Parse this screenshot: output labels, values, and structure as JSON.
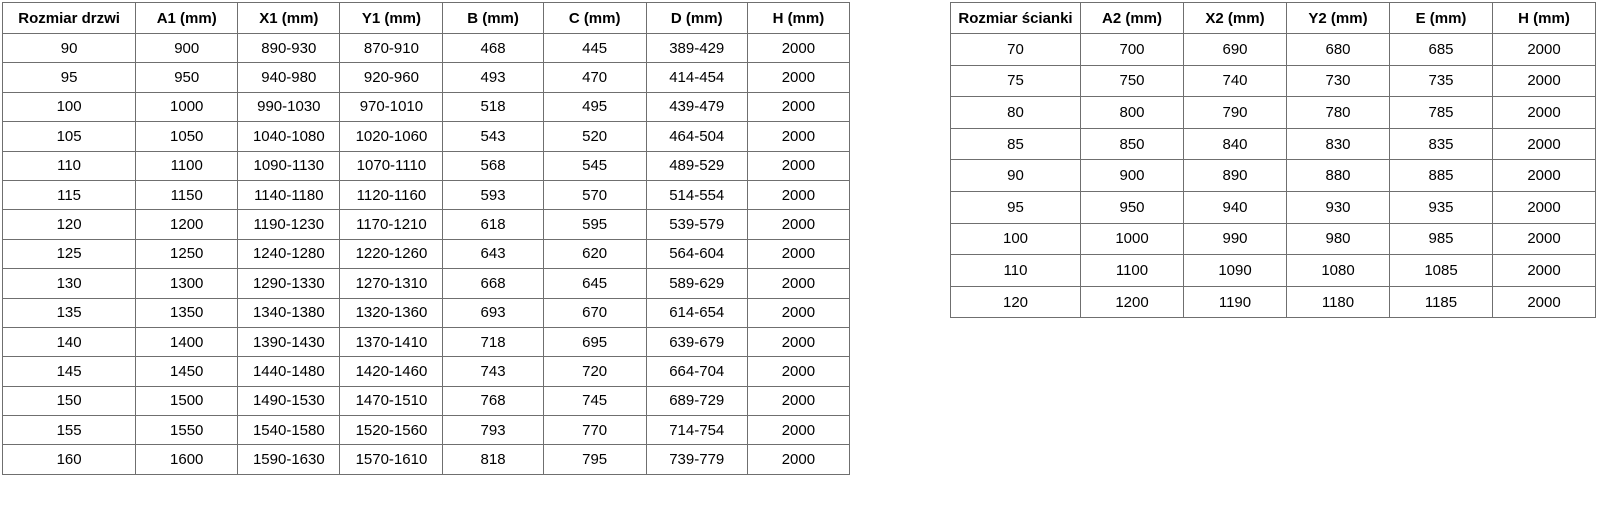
{
  "page": {
    "background_color": "#ffffff",
    "text_color": "#000000",
    "grid_border_color": "#6f6f6f",
    "outer_border_color": "#585858"
  },
  "tables": [
    {
      "id": "door-sizes",
      "headers": [
        "Rozmiar drzwi",
        "A1 (mm)",
        "X1 (mm)",
        "Y1 (mm)",
        "B (mm)",
        "C (mm)",
        "D (mm)",
        "H (mm)"
      ],
      "rows": [
        [
          "90",
          "900",
          "890-930",
          "870-910",
          "468",
          "445",
          "389-429",
          "2000"
        ],
        [
          "95",
          "950",
          "940-980",
          "920-960",
          "493",
          "470",
          "414-454",
          "2000"
        ],
        [
          "100",
          "1000",
          "990-1030",
          "970-1010",
          "518",
          "495",
          "439-479",
          "2000"
        ],
        [
          "105",
          "1050",
          "1040-1080",
          "1020-1060",
          "543",
          "520",
          "464-504",
          "2000"
        ],
        [
          "110",
          "1100",
          "1090-1130",
          "1070-1110",
          "568",
          "545",
          "489-529",
          "2000"
        ],
        [
          "115",
          "1150",
          "1140-1180",
          "1120-1160",
          "593",
          "570",
          "514-554",
          "2000"
        ],
        [
          "120",
          "1200",
          "1190-1230",
          "1170-1210",
          "618",
          "595",
          "539-579",
          "2000"
        ],
        [
          "125",
          "1250",
          "1240-1280",
          "1220-1260",
          "643",
          "620",
          "564-604",
          "2000"
        ],
        [
          "130",
          "1300",
          "1290-1330",
          "1270-1310",
          "668",
          "645",
          "589-629",
          "2000"
        ],
        [
          "135",
          "1350",
          "1340-1380",
          "1320-1360",
          "693",
          "670",
          "614-654",
          "2000"
        ],
        [
          "140",
          "1400",
          "1390-1430",
          "1370-1410",
          "718",
          "695",
          "639-679",
          "2000"
        ],
        [
          "145",
          "1450",
          "1440-1480",
          "1420-1460",
          "743",
          "720",
          "664-704",
          "2000"
        ],
        [
          "150",
          "1500",
          "1490-1530",
          "1470-1510",
          "768",
          "745",
          "689-729",
          "2000"
        ],
        [
          "155",
          "1550",
          "1540-1580",
          "1520-1560",
          "793",
          "770",
          "714-754",
          "2000"
        ],
        [
          "160",
          "1600",
          "1590-1630",
          "1570-1610",
          "818",
          "795",
          "739-779",
          "2000"
        ]
      ]
    },
    {
      "id": "wall-sizes",
      "headers": [
        "Rozmiar ścianki",
        "A2 (mm)",
        "X2 (mm)",
        "Y2 (mm)",
        "E (mm)",
        "H (mm)"
      ],
      "rows": [
        [
          "70",
          "700",
          "690",
          "680",
          "685",
          "2000"
        ],
        [
          "75",
          "750",
          "740",
          "730",
          "735",
          "2000"
        ],
        [
          "80",
          "800",
          "790",
          "780",
          "785",
          "2000"
        ],
        [
          "85",
          "850",
          "840",
          "830",
          "835",
          "2000"
        ],
        [
          "90",
          "900",
          "890",
          "880",
          "885",
          "2000"
        ],
        [
          "95",
          "950",
          "940",
          "930",
          "935",
          "2000"
        ],
        [
          "100",
          "1000",
          "990",
          "980",
          "985",
          "2000"
        ],
        [
          "110",
          "1100",
          "1090",
          "1080",
          "1085",
          "2000"
        ],
        [
          "120",
          "1200",
          "1190",
          "1180",
          "1185",
          "2000"
        ]
      ]
    }
  ]
}
